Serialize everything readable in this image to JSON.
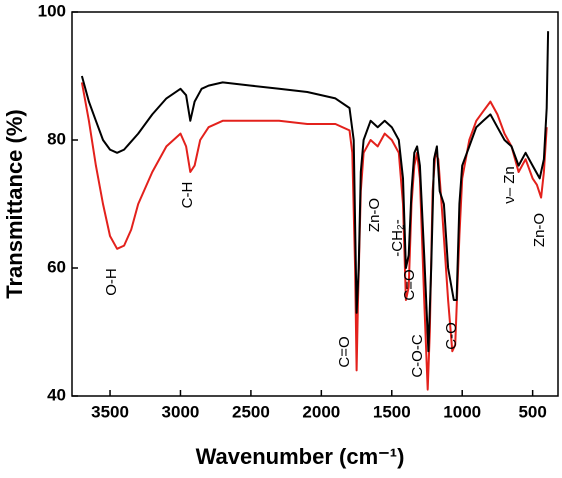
{
  "chart_data": {
    "type": "line",
    "xlabel": "Wavenumber (cm⁻¹)",
    "ylabel": "Transmittance (%)",
    "xlim": [
      3770,
      320
    ],
    "ylim": [
      40,
      100
    ],
    "xticks": [
      3500,
      3000,
      2500,
      2000,
      1500,
      1000,
      500
    ],
    "yticks": [
      40,
      60,
      80,
      100
    ],
    "series": [
      {
        "color": "#000000",
        "x": [
          3700,
          3650,
          3600,
          3550,
          3500,
          3450,
          3400,
          3300,
          3200,
          3100,
          3000,
          2960,
          2930,
          2900,
          2850,
          2800,
          2700,
          2500,
          2300,
          2100,
          1900,
          1800,
          1770,
          1750,
          1735,
          1720,
          1700,
          1650,
          1600,
          1550,
          1500,
          1450,
          1420,
          1400,
          1380,
          1360,
          1340,
          1320,
          1300,
          1270,
          1240,
          1220,
          1200,
          1180,
          1160,
          1130,
          1100,
          1060,
          1040,
          1020,
          1000,
          950,
          900,
          850,
          800,
          750,
          700,
          650,
          600,
          550,
          500,
          450,
          420,
          400,
          390
        ],
        "values": [
          90,
          86,
          83,
          80,
          78.5,
          78,
          78.5,
          81,
          84,
          86.5,
          88,
          87,
          83,
          86,
          88,
          88.5,
          89,
          88.5,
          88,
          87.5,
          86.5,
          85,
          80,
          53,
          60,
          75,
          80,
          83,
          82,
          83,
          82,
          80,
          74,
          60,
          62,
          72,
          78,
          79,
          76,
          62,
          47,
          60,
          77,
          79,
          72,
          70,
          60,
          55,
          55,
          70,
          76,
          79,
          82,
          83,
          84,
          82,
          80,
          79,
          76,
          78,
          76,
          74,
          77,
          85,
          97
        ]
      },
      {
        "color": "#e3211c",
        "x": [
          3700,
          3650,
          3600,
          3550,
          3500,
          3450,
          3400,
          3350,
          3300,
          3200,
          3100,
          3000,
          2960,
          2930,
          2900,
          2860,
          2800,
          2700,
          2500,
          2300,
          2100,
          1900,
          1800,
          1780,
          1760,
          1750,
          1740,
          1720,
          1700,
          1650,
          1600,
          1550,
          1500,
          1450,
          1420,
          1400,
          1380,
          1360,
          1340,
          1320,
          1300,
          1270,
          1245,
          1230,
          1210,
          1190,
          1170,
          1140,
          1100,
          1070,
          1050,
          1020,
          1000,
          950,
          900,
          850,
          800,
          750,
          700,
          650,
          600,
          550,
          500,
          470,
          440,
          420,
          400
        ],
        "values": [
          89,
          83,
          76,
          70,
          65,
          63,
          63.5,
          66,
          70,
          75,
          79,
          81,
          79,
          75,
          76,
          80,
          82,
          83,
          83,
          83,
          82.5,
          82.5,
          81.5,
          78,
          60,
          44,
          55,
          72,
          78,
          80,
          79,
          81,
          80,
          78,
          70,
          55,
          57,
          70,
          76,
          78,
          74,
          55,
          41,
          50,
          72,
          78,
          77,
          68,
          55,
          47,
          48,
          65,
          74,
          80,
          83,
          84.5,
          86,
          84,
          81,
          79,
          75,
          77,
          74,
          73,
          71,
          75,
          82
        ]
      }
    ],
    "annotations": [
      "O-H",
      "C-H",
      "C=O",
      "Zn-O",
      "-CH₂-",
      "C=O",
      "C-O-C",
      "C-O",
      "ν– Zn",
      "Zn-O"
    ]
  }
}
